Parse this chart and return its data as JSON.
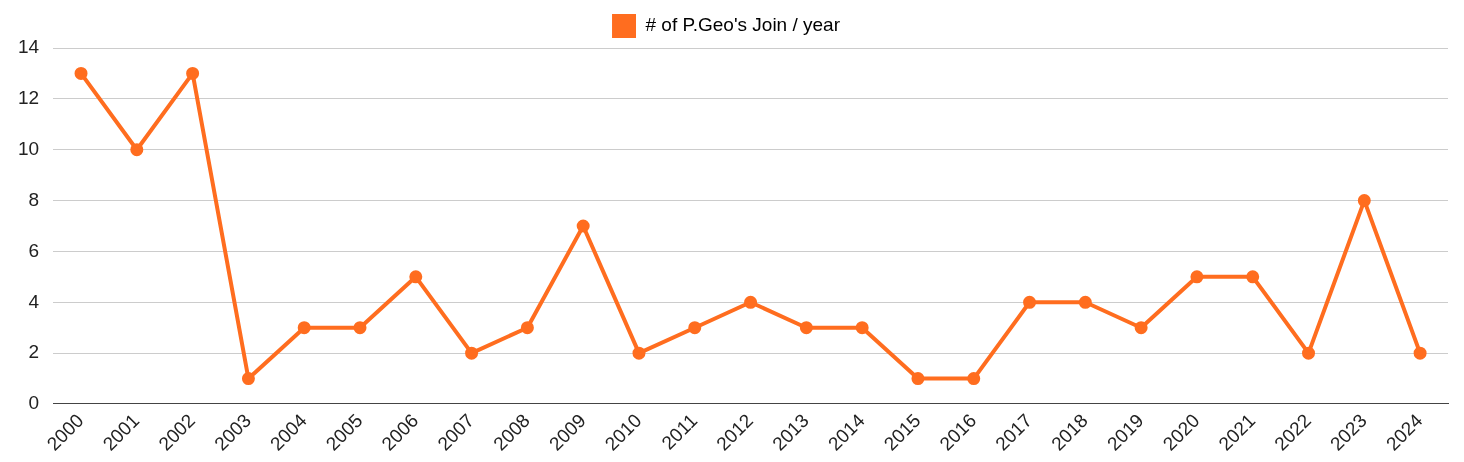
{
  "chart_data": {
    "type": "line",
    "categories": [
      "2000",
      "2001",
      "2002",
      "2003",
      "2004",
      "2005",
      "2006",
      "2007",
      "2008",
      "2009",
      "2010",
      "2011",
      "2012",
      "2013",
      "2014",
      "2015",
      "2016",
      "2017",
      "2018",
      "2019",
      "2020",
      "2021",
      "2022",
      "2023",
      "2024"
    ],
    "series": [
      {
        "name": "# of P.Geo's Join / year",
        "color": "#ff6d1f",
        "values": [
          13,
          10,
          13,
          1,
          3,
          3,
          5,
          2,
          3,
          7,
          2,
          3,
          4,
          3,
          3,
          1,
          1,
          4,
          4,
          3,
          5,
          5,
          2,
          8,
          2
        ]
      }
    ],
    "ylim": [
      0,
      14
    ],
    "yticks": [
      0,
      2,
      4,
      6,
      8,
      10,
      12,
      14
    ],
    "grid": "y",
    "legend": "top",
    "marker": "circle",
    "line_style": "solid"
  }
}
